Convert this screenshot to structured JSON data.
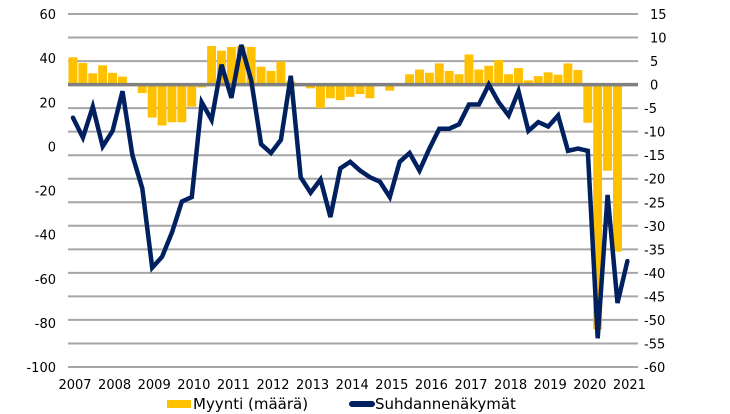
{
  "chart_data": {
    "type": "bar+line",
    "title": "",
    "x_tick_labels": [
      "2007",
      "2008",
      "2009",
      "2010",
      "2011",
      "2012",
      "2013",
      "2014",
      "2015",
      "2016",
      "2017",
      "2018",
      "2019",
      "2020",
      "2021"
    ],
    "left_axis": {
      "ticks": [
        "60",
        "40",
        "20",
        "0",
        "-20",
        "-40",
        "-60",
        "-80",
        "-100"
      ],
      "range": [
        -100,
        60
      ]
    },
    "right_axis": {
      "ticks": [
        "15",
        "10",
        "5",
        "0",
        "-5",
        "-10",
        "-15",
        "-20",
        "-25",
        "-30",
        "-35",
        "-40",
        "-45",
        "-50",
        "-55",
        "-60"
      ],
      "range": [
        -60,
        15
      ]
    },
    "grid": true,
    "legend_position": "bottom",
    "series": [
      {
        "name": "Myynti (määrä)",
        "type": "bar",
        "axis": "right",
        "color": "#FFC000",
        "values": [
          5.8,
          4.6,
          2.4,
          4.1,
          2.5,
          1.7,
          0.2,
          -1.8,
          -7.0,
          -8.7,
          -8.0,
          -8.0,
          -4.7,
          -0.6,
          8.2,
          7.2,
          8.0,
          8.2,
          8.0,
          3.8,
          2.9,
          4.9,
          0.7,
          0.0,
          -0.8,
          -5.0,
          -2.9,
          -3.3,
          -2.6,
          -2.0,
          -2.9,
          -0.3,
          -1.3,
          0.0,
          2.2,
          3.2,
          2.5,
          4.5,
          2.9,
          2.2,
          6.4,
          3.2,
          4.0,
          5.2,
          2.2,
          3.5,
          0.9,
          1.8,
          2.6,
          2.1,
          4.5,
          3.1,
          -8.1,
          -52.0,
          -18.3,
          -35.5
        ]
      },
      {
        "name": "Suhdannenäkymät",
        "type": "line",
        "axis": "left",
        "color": "#002060",
        "values": [
          13,
          4,
          18,
          0,
          7,
          25,
          -4,
          -19,
          -55,
          -50,
          -39,
          -25,
          -23,
          20,
          12,
          37,
          22,
          46,
          30,
          1,
          -3,
          3,
          32,
          -14,
          -21,
          -15,
          -32,
          -10,
          -7,
          -11,
          -14,
          -16,
          -23,
          -7,
          -3,
          -11,
          -1,
          8,
          8,
          10,
          19,
          19,
          28,
          20,
          14,
          25,
          7,
          11,
          9,
          14,
          -2,
          -1,
          -2,
          -87,
          -22,
          -71,
          -52
        ]
      }
    ],
    "legend": [
      {
        "label": "Myynti (määrä)",
        "color": "#FFC000"
      },
      {
        "label": "Suhdannenäkymät",
        "color": "#002060"
      }
    ],
    "colors": {
      "grid": "#A6A6A6",
      "zero_line": "#808080"
    }
  }
}
